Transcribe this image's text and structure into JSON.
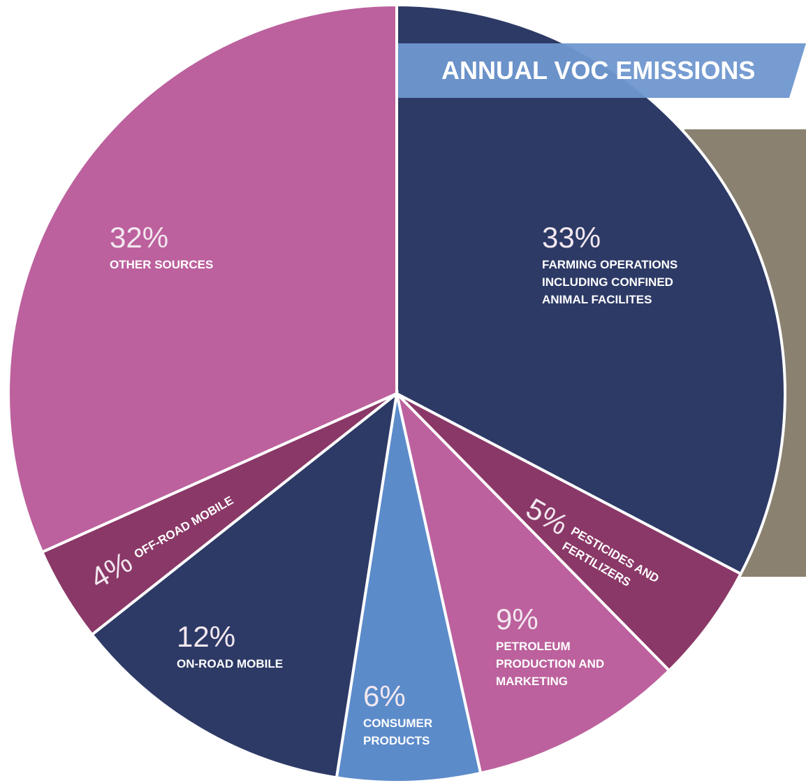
{
  "chart_data": {
    "type": "pie",
    "title": "ANNUAL VOC EMISSIONS",
    "categories": [
      "FARMING OPERATIONS INCLUDING CONFINED ANIMAL FACILITES",
      "PESTICIDES AND FERTILIZERS",
      "PETROLEUM PRODUCTION AND MARKETING",
      "CONSUMER PRODUCTS",
      "ON-ROAD MOBILE",
      "OFF-ROAD MOBILE",
      "OTHER SOURCES"
    ],
    "values": [
      33,
      5,
      9,
      6,
      12,
      4,
      32
    ],
    "value_labels": [
      "33%",
      "5%",
      "9%",
      "6%",
      "12%",
      "4%",
      "32%"
    ],
    "colors": [
      "#2d3a66",
      "#8a3867",
      "#bc619d",
      "#5c8bca",
      "#2d3a66",
      "#8a3867",
      "#bc619d"
    ]
  }
}
